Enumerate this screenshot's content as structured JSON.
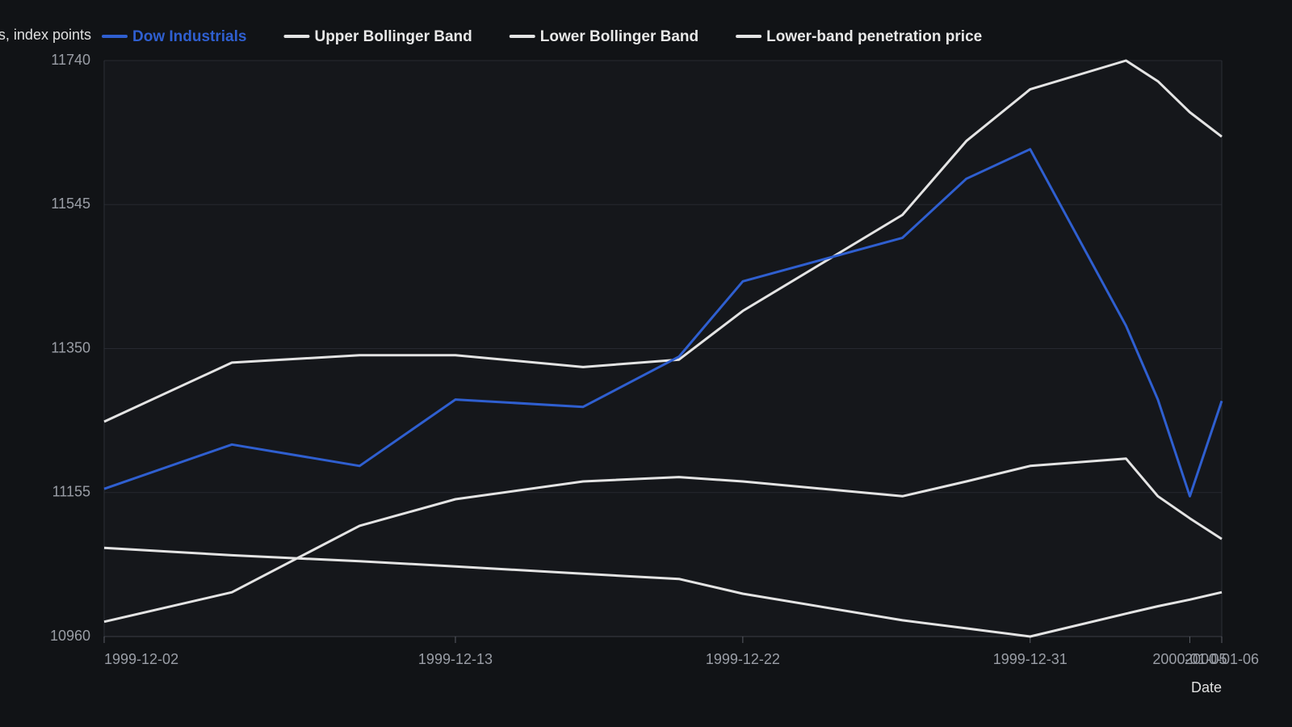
{
  "chart_data": {
    "type": "line",
    "y_label": "Dow Industrials, index points",
    "x_label": "Date",
    "x": [
      "1999-12-02",
      "1999-12-06",
      "1999-12-10",
      "1999-12-13",
      "1999-12-17",
      "1999-12-20",
      "1999-12-22",
      "1999-12-27",
      "1999-12-29",
      "1999-12-31",
      "2000-01-03",
      "2000-01-04",
      "2000-01-05",
      "2000-01-06"
    ],
    "series": [
      {
        "name": "Dow Industrials",
        "color": "#2f5fd0",
        "values": [
          11160,
          11220,
          11191,
          11281,
          11271,
          11339,
          11441,
          11500,
          11580,
          11620,
          11381,
          11281,
          11150,
          11279
        ]
      },
      {
        "name": "Upper Bollinger Band",
        "color": "#e4e4e4",
        "values": [
          11251,
          11331,
          11341,
          11341,
          11325,
          11335,
          11401,
          11531,
          11631,
          11701,
          11740,
          11712,
          11670,
          11637
        ]
      },
      {
        "name": "Lower Bollinger Band",
        "color": "#e4e4e4",
        "values": [
          10980,
          11020,
          11110,
          11146,
          11170,
          11176,
          11170,
          11150,
          11170,
          11191,
          11201,
          11150,
          11120,
          11092
        ]
      },
      {
        "name": "Lower-band penetration price",
        "color": "#e4e4e4",
        "values": [
          11080,
          11070,
          11062,
          11055,
          11045,
          11038,
          11018,
          10982,
          10971,
          10960,
          10991,
          11001,
          11010,
          11020
        ]
      }
    ],
    "xlim": [
      "1999-12-02",
      "2000-01-06"
    ],
    "xticks": [
      "1999-12-02",
      "1999-12-13",
      "1999-12-22",
      "1999-12-31",
      "2000-01-05",
      "2000-01-06"
    ],
    "ylim": [
      10960,
      11740
    ],
    "yticks": [
      10960,
      11155,
      11350,
      11545,
      11740
    ],
    "grid": true,
    "legend": "top"
  }
}
